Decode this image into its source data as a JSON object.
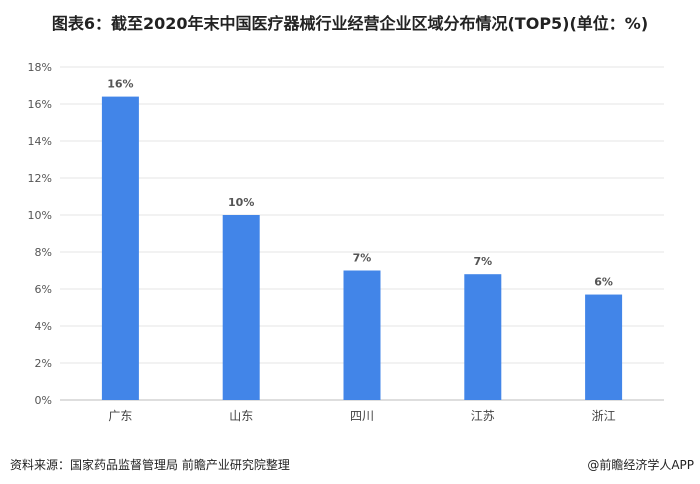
{
  "title": "图表6：截至2020年末中国医疗器械行业经营企业区域分布情况(TOP5)(单位：%)",
  "source": "资料来源：国家药品监督管理局 前瞻产业研究院整理",
  "credit": "@前瞻经济学人APP",
  "colors": {
    "bar": "#4285e8",
    "grid": "#e4e4e4",
    "axis": "#bdbdbd"
  },
  "chart_data": {
    "type": "bar",
    "categories": [
      "广东",
      "山东",
      "四川",
      "江苏",
      "浙江"
    ],
    "values": [
      16.4,
      10.0,
      7.0,
      6.8,
      5.7
    ],
    "data_labels": [
      "16%",
      "10%",
      "7%",
      "7%",
      "6%"
    ],
    "yticks": [
      "0%",
      "2%",
      "4%",
      "6%",
      "8%",
      "10%",
      "12%",
      "14%",
      "16%",
      "18%"
    ],
    "ylim": [
      0,
      18
    ],
    "grid": true
  }
}
